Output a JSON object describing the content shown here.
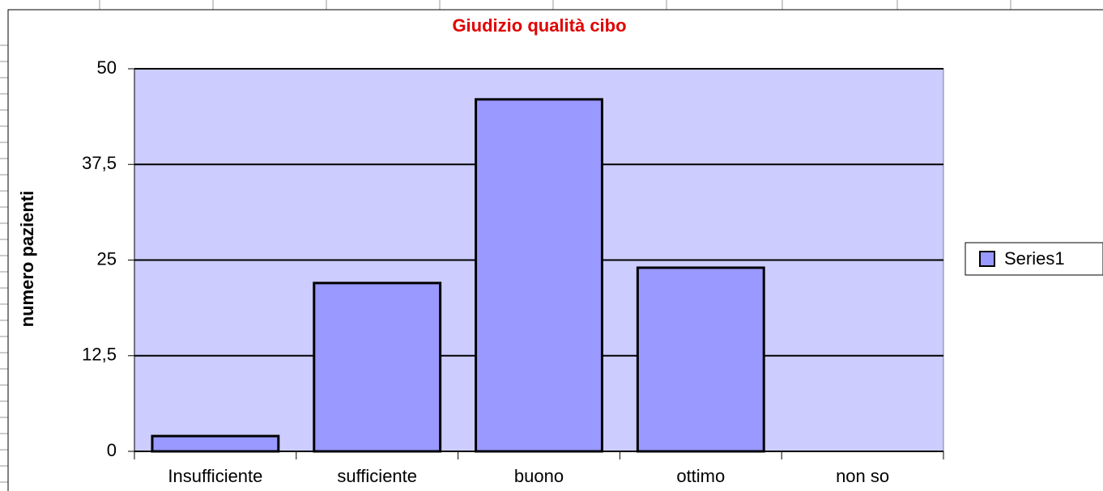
{
  "chart_data": {
    "type": "bar",
    "title": "Giudizio qualità cibo",
    "y_label": "numero pazienti",
    "categories": [
      "Insufficiente",
      "sufficiente",
      "buono",
      "ottimo",
      "non so"
    ],
    "series": [
      {
        "name": "Series1",
        "color": "#9999ff",
        "values": [
          2,
          22,
          46,
          24,
          0
        ]
      }
    ],
    "ylim": [
      0,
      50
    ],
    "yticks": [
      0,
      {
        "value": 12.5,
        "label": "12,5"
      },
      25,
      {
        "value": 37.5,
        "label": "37,5"
      },
      50
    ],
    "grid": true,
    "legend": "right"
  }
}
